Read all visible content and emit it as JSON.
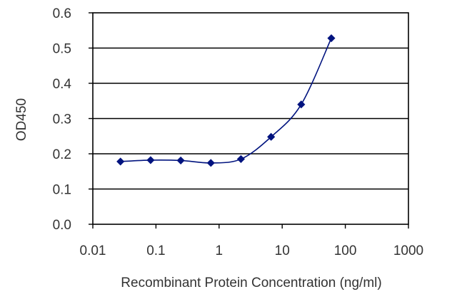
{
  "chart_data": {
    "type": "line",
    "title": "",
    "xlabel": "Recombinant Protein Concentration (ng/ml)",
    "ylabel": "OD450",
    "x_scale": "log",
    "xlim": [
      0.01,
      1000
    ],
    "ylim": [
      0,
      0.6
    ],
    "x_ticks": [
      0.01,
      0.1,
      1,
      10,
      100,
      1000
    ],
    "x_tick_labels": [
      "0.01",
      "0.1",
      "1",
      "10",
      "100",
      "1000"
    ],
    "y_ticks": [
      0,
      0.1,
      0.2,
      0.3,
      0.4,
      0.5,
      0.6
    ],
    "y_tick_labels": [
      "0.0",
      "0.1",
      "0.2",
      "0.3",
      "0.4",
      "0.5",
      "0.6"
    ],
    "grid": "horizontal",
    "series": [
      {
        "x": [
          0.0274,
          0.0823,
          0.247,
          0.741,
          2.22,
          6.67,
          20,
          60
        ],
        "y": [
          0.178,
          0.182,
          0.181,
          0.174,
          0.185,
          0.248,
          0.34,
          0.528
        ],
        "color": "#00137f",
        "marker": "diamond"
      }
    ]
  }
}
